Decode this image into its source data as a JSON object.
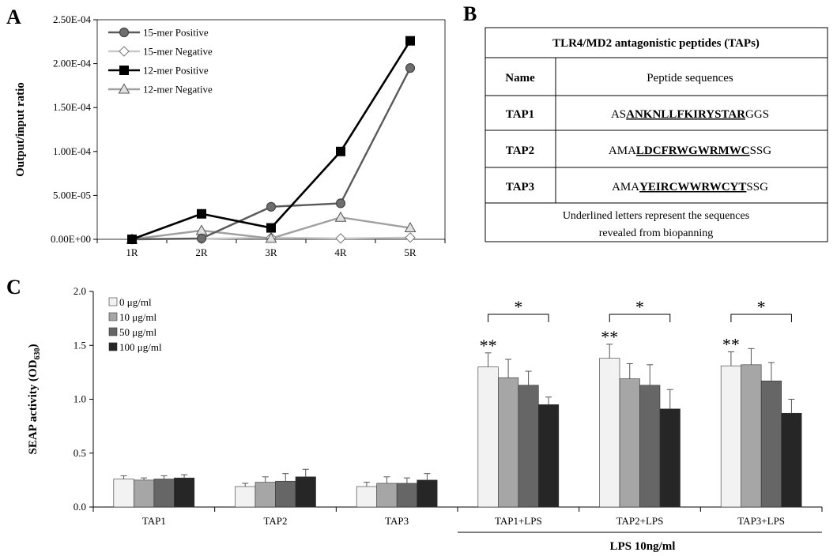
{
  "panels": {
    "a": "A",
    "b": "B",
    "c": "C"
  },
  "chart_data": [
    {
      "type": "line",
      "panel": "A",
      "ylabel": "Output/input ratio",
      "xlabel": "",
      "categories": [
        "1R",
        "2R",
        "3R",
        "4R",
        "5R"
      ],
      "ylim": [
        0,
        0.00025
      ],
      "yticks": [
        0,
        5e-05,
        0.0001,
        0.00015,
        0.0002,
        0.00025
      ],
      "ytick_labels": [
        "0.00E+00",
        "5.00E-05",
        "1.00E-04",
        "1.50E-04",
        "2.00E-04",
        "2.50E-04"
      ],
      "legend_position": "top-left",
      "series": [
        {
          "name": "15-mer Positive",
          "marker": "circle",
          "color": "#5a5a5a",
          "marker_fill": "#6e6e6e",
          "values": [
            0,
            1e-06,
            3.7e-05,
            4.1e-05,
            0.000195
          ]
        },
        {
          "name": "15-mer Negative",
          "marker": "diamond",
          "color": "#c8c8c8",
          "marker_fill": "#ffffff",
          "values": [
            0,
            5e-07,
            2e-06,
            1e-06,
            2e-06
          ]
        },
        {
          "name": "12-mer Positive",
          "marker": "square",
          "color": "#000000",
          "marker_fill": "#000000",
          "values": [
            0,
            2.9e-05,
            1.3e-05,
            0.0001,
            0.000226
          ]
        },
        {
          "name": "12-mer Negative",
          "marker": "triangle",
          "color": "#a0a0a0",
          "marker_fill": "#e0e0e0",
          "values": [
            0,
            1e-05,
            1e-06,
            2.5e-05,
            1.3e-05
          ]
        }
      ]
    },
    {
      "type": "bar",
      "panel": "C",
      "ylabel": "SEAP activity  (OD",
      "ylabel_sub": "630",
      "ylabel_end": ")",
      "categories": [
        "TAP1",
        "TAP2",
        "TAP3",
        "TAP1+LPS",
        "TAP2+LPS",
        "TAP3+LPS"
      ],
      "ylim": [
        0,
        2.0
      ],
      "yticks": [
        0,
        0.5,
        1.0,
        1.5,
        2.0
      ],
      "ytick_labels": [
        "0.0",
        "0.5",
        "1.0",
        "1.5",
        "2.0"
      ],
      "legend_position": "top-left",
      "series": [
        {
          "name": "0 μg/ml",
          "color": "#f2f2f2",
          "values": [
            0.26,
            0.19,
            0.19,
            1.3,
            1.38,
            1.31
          ],
          "errors": [
            0.03,
            0.03,
            0.04,
            0.13,
            0.13,
            0.13
          ]
        },
        {
          "name": "10 μg/ml",
          "color": "#a6a6a6",
          "values": [
            0.25,
            0.23,
            0.22,
            1.2,
            1.19,
            1.32
          ],
          "errors": [
            0.02,
            0.05,
            0.06,
            0.17,
            0.14,
            0.15
          ]
        },
        {
          "name": "50 μg/ml",
          "color": "#666666",
          "values": [
            0.26,
            0.24,
            0.22,
            1.13,
            1.13,
            1.17
          ],
          "errors": [
            0.03,
            0.07,
            0.05,
            0.13,
            0.19,
            0.17
          ]
        },
        {
          "name": "100 μg/ml",
          "color": "#262626",
          "values": [
            0.27,
            0.28,
            0.25,
            0.95,
            0.91,
            0.87
          ],
          "errors": [
            0.03,
            0.07,
            0.06,
            0.07,
            0.18,
            0.13
          ]
        }
      ],
      "annotations": {
        "double_star": "**",
        "single_star": "*",
        "double_star_groups": [
          3,
          4,
          5
        ],
        "bracket_groups": [
          3,
          4,
          5
        ]
      },
      "group_label": "LPS 10ng/ml"
    }
  ],
  "table": {
    "title": "TLR4/MD2 antagonistic peptides (TAPs)",
    "col_name": "Name",
    "col_seq": "Peptide sequences",
    "rows": [
      {
        "name": "TAP1",
        "prefix": "AS",
        "core": "ANKNLLFKIRYSTAR",
        "suffix": "GGS"
      },
      {
        "name": "TAP2",
        "prefix": "AMA",
        "core": "LDCFRWGWRMWC",
        "suffix": "SSG"
      },
      {
        "name": "TAP3",
        "prefix": "AMA",
        "core": "YEIRCWWRWCYT",
        "suffix": "SSG"
      }
    ],
    "note_line1": "Underlined letters represent the sequences",
    "note_line2": "revealed from biopanning"
  }
}
